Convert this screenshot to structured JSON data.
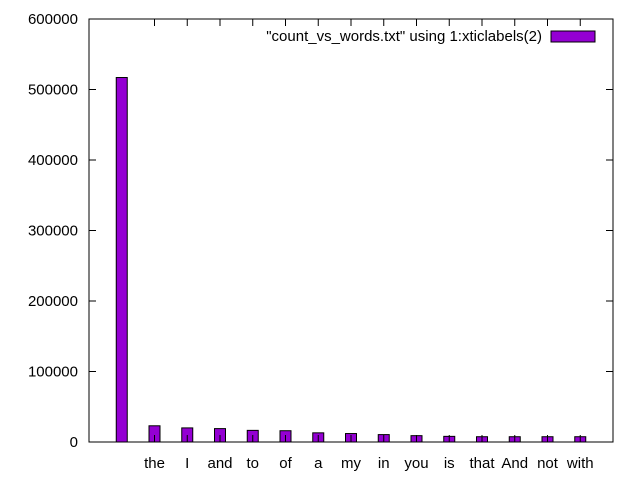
{
  "chart_data": {
    "type": "bar",
    "categories": [
      "",
      "the",
      "I",
      "and",
      "to",
      "of",
      "a",
      "my",
      "in",
      "you",
      "is",
      "that",
      "And",
      "not",
      "with"
    ],
    "series": [
      {
        "name": "\"count_vs_words.txt\" using 1:xticlabels(2)",
        "values": [
          517000,
          23000,
          20000,
          19000,
          16500,
          16000,
          13000,
          12000,
          10500,
          9000,
          8000,
          7500,
          7500,
          7500,
          7500
        ]
      }
    ],
    "ylim": [
      0,
      600000
    ],
    "yticks": [
      0,
      100000,
      200000,
      300000,
      400000,
      500000,
      600000
    ],
    "xlabel": "",
    "ylabel": "",
    "title": "",
    "legend_position": "top-right",
    "grid": false,
    "bar_color": "#9400d3"
  }
}
